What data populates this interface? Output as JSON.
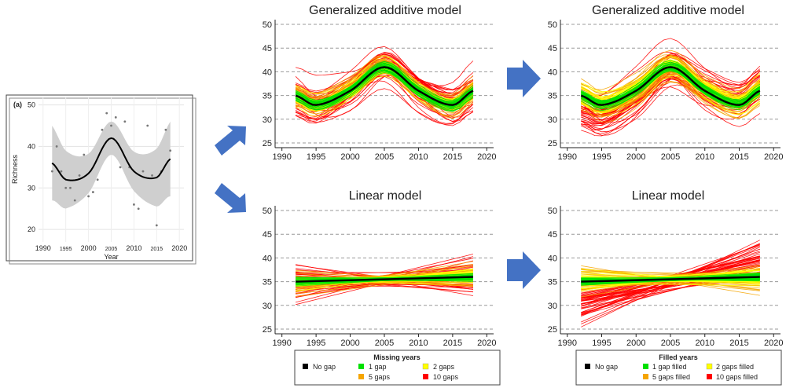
{
  "colors": {
    "nogap": "#000000",
    "gap1": "#00e000",
    "gap2": "#ffff00",
    "gap5": "#f5a500",
    "gap10": "#ff0000",
    "arrow": "#4472c4",
    "band": "#cfcfcf"
  },
  "inset": {
    "label": "(a)",
    "ylabel": "Richness",
    "xlabel": "Year",
    "yticks": [
      20,
      30,
      40,
      50
    ],
    "xticks": [
      1990,
      1995,
      2000,
      2005,
      2010,
      2015,
      2020
    ],
    "points": [
      [
        1992,
        34
      ],
      [
        1993,
        40
      ],
      [
        1994,
        34
      ],
      [
        1995,
        30
      ],
      [
        1996,
        30
      ],
      [
        1997,
        27
      ],
      [
        1998,
        33
      ],
      [
        1999,
        38
      ],
      [
        2000,
        28
      ],
      [
        2001,
        29
      ],
      [
        2002,
        32
      ],
      [
        2003,
        44
      ],
      [
        2004,
        48
      ],
      [
        2005,
        45
      ],
      [
        2006,
        47
      ],
      [
        2007,
        35
      ],
      [
        2008,
        46
      ],
      [
        2009,
        35
      ],
      [
        2010,
        26
      ],
      [
        2011,
        25
      ],
      [
        2012,
        34
      ],
      [
        2013,
        45
      ],
      [
        2014,
        33
      ],
      [
        2015,
        21
      ],
      [
        2016,
        34
      ],
      [
        2017,
        44
      ],
      [
        2018,
        39
      ]
    ]
  },
  "panels": [
    {
      "id": "gam-missing",
      "title": "Generalized additive model",
      "type": "gam",
      "mode": "missing"
    },
    {
      "id": "gam-filled",
      "title": "Generalized additive model",
      "type": "gam",
      "mode": "filled"
    },
    {
      "id": "lm-missing",
      "title": "Linear model",
      "type": "lm",
      "mode": "missing"
    },
    {
      "id": "lm-filled",
      "title": "Linear model",
      "type": "lm",
      "mode": "filled"
    }
  ],
  "chart_data": {
    "type": "line",
    "x": [
      1992,
      1995,
      2000,
      2005,
      2010,
      2015,
      2018
    ],
    "series": [
      {
        "name": "GAM no gap",
        "values": [
          35,
          33,
          36,
          41,
          36,
          33,
          36
        ]
      },
      {
        "name": "Linear no gap",
        "values": [
          35,
          35.2,
          35.4,
          35.6,
          35.8,
          35.9,
          36
        ]
      }
    ],
    "yticks": [
      25,
      30,
      35,
      40,
      45,
      50
    ],
    "xticks": [
      1990,
      1995,
      2000,
      2005,
      2010,
      2015,
      2020
    ],
    "ylim": [
      24,
      51
    ],
    "xlim": [
      1989,
      2021
    ]
  },
  "legend_missing": {
    "title": "Missing years",
    "items": [
      "No gap",
      "1 gap",
      "2 gaps",
      "5 gaps",
      "10 gaps"
    ]
  },
  "legend_filled": {
    "title": "Filled years",
    "items": [
      "No gap",
      "1 gap filled",
      "2 gaps filled",
      "5 gaps filled",
      "10 gaps filled"
    ]
  }
}
